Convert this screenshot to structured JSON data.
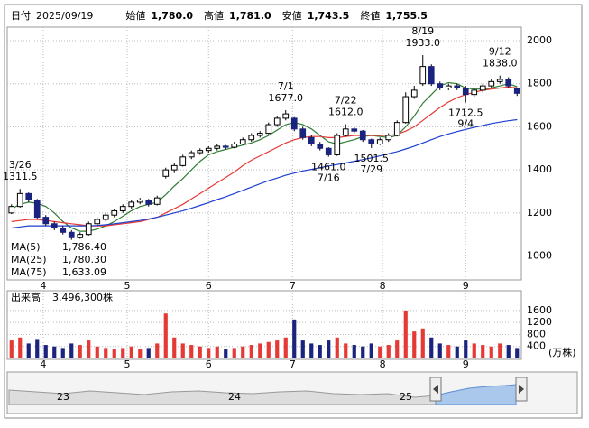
{
  "header": {
    "date_label": "日付",
    "date": "2025/09/19",
    "items": [
      {
        "label": "始値",
        "value": "1,780.0",
        "color": "#000000"
      },
      {
        "label": "高値",
        "value": "1,781.0",
        "color": "#e60000"
      },
      {
        "label": "安値",
        "value": "1,743.5",
        "color": "#008000"
      },
      {
        "label": "終値",
        "value": "1,755.5",
        "color": "#000000"
      }
    ]
  },
  "chart_data": {
    "type": "candlestick",
    "categories": [
      null,
      null,
      null,
      null,
      null,
      null,
      null,
      null,
      null,
      null,
      null,
      null,
      null,
      null,
      null,
      null,
      null,
      null,
      null,
      null,
      null,
      null,
      null,
      null,
      null,
      null,
      null,
      null,
      null,
      null,
      null,
      null,
      null,
      null,
      null,
      null,
      null,
      null,
      null,
      null,
      null,
      null,
      null,
      null,
      null,
      null,
      null,
      null,
      null,
      null,
      null,
      null,
      null,
      null,
      null,
      null,
      null,
      null,
      null,
      null
    ],
    "open": [
      1200,
      1230,
      1290,
      1260,
      1180,
      1150,
      1130,
      1110,
      1085,
      1100,
      1150,
      1170,
      1190,
      1210,
      1230,
      1250,
      1260,
      1240,
      1370,
      1400,
      1420,
      1460,
      1480,
      1490,
      1500,
      1510,
      1505,
      1520,
      1540,
      1560,
      1570,
      1610,
      1640,
      1640,
      1590,
      1550,
      1520,
      1500,
      1470,
      1560,
      1590,
      1580,
      1540,
      1520,
      1540,
      1560,
      1620,
      1740,
      1800,
      1880,
      1800,
      1780,
      1790,
      1780,
      1750,
      1770,
      1790,
      1810,
      1820,
      1780
    ],
    "high": [
      1240,
      1311.5,
      1295,
      1265,
      1190,
      1160,
      1140,
      1120,
      1110,
      1160,
      1180,
      1200,
      1220,
      1240,
      1260,
      1270,
      1265,
      1280,
      1410,
      1430,
      1470,
      1490,
      1500,
      1510,
      1520,
      1515,
      1530,
      1550,
      1570,
      1580,
      1620,
      1650,
      1677,
      1645,
      1600,
      1560,
      1530,
      1505,
      1570,
      1612,
      1600,
      1585,
      1545,
      1550,
      1570,
      1630,
      1760,
      1790,
      1933,
      1890,
      1810,
      1800,
      1800,
      1790,
      1780,
      1800,
      1820,
      1838,
      1830,
      1781
    ],
    "low": [
      1195,
      1225,
      1250,
      1170,
      1140,
      1120,
      1100,
      1075,
      1080,
      1095,
      1140,
      1160,
      1180,
      1200,
      1220,
      1240,
      1230,
      1235,
      1360,
      1385,
      1415,
      1450,
      1470,
      1480,
      1490,
      1495,
      1500,
      1515,
      1530,
      1550,
      1565,
      1600,
      1630,
      1580,
      1540,
      1510,
      1490,
      1461,
      1465,
      1555,
      1570,
      1530,
      1501.5,
      1515,
      1530,
      1555,
      1615,
      1730,
      1790,
      1790,
      1770,
      1770,
      1770,
      1712.5,
      1740,
      1760,
      1780,
      1800,
      1780,
      1743.5
    ],
    "close": [
      1230,
      1290,
      1260,
      1180,
      1150,
      1130,
      1110,
      1085,
      1100,
      1150,
      1170,
      1190,
      1210,
      1230,
      1250,
      1260,
      1240,
      1270,
      1400,
      1420,
      1460,
      1480,
      1490,
      1500,
      1510,
      1505,
      1520,
      1540,
      1560,
      1570,
      1610,
      1640,
      1660,
      1590,
      1550,
      1520,
      1500,
      1470,
      1560,
      1590,
      1580,
      1540,
      1520,
      1540,
      1560,
      1620,
      1740,
      1770,
      1880,
      1800,
      1780,
      1790,
      1780,
      1750,
      1770,
      1790,
      1810,
      1820,
      1790,
      1755.5
    ],
    "up_color": "#ffffff",
    "down_color": "#1a237e",
    "annotations": [
      {
        "date": "3/26",
        "value": 1311.5,
        "label": "1311.5"
      },
      {
        "date": "7/1",
        "value": 1677,
        "label": "1677.0"
      },
      {
        "date": "7/22",
        "value": 1612,
        "label": "1612.0"
      },
      {
        "date": "8/19",
        "value": 1933,
        "label": "1933.0"
      },
      {
        "date": "9/12",
        "value": 1838,
        "label": "1838.0"
      },
      {
        "date": "7/16",
        "value": 1461,
        "label": "1461.0"
      },
      {
        "date": "7/29",
        "value": 1501.5,
        "label": "1501.5"
      },
      {
        "date": "9/4",
        "value": 1712.5,
        "label": "1712.5"
      }
    ],
    "series": [
      {
        "name": "MA(5)",
        "legend_value": "1,786.40",
        "color": "#2e7d32",
        "values": [
          1220,
          1240,
          1250,
          1245,
          1230,
          1200,
          1160,
          1130,
          1115,
          1115,
          1125,
          1140,
          1160,
          1185,
          1210,
          1230,
          1240,
          1250,
          1285,
          1325,
          1360,
          1400,
          1440,
          1470,
          1485,
          1495,
          1505,
          1515,
          1525,
          1540,
          1560,
          1585,
          1610,
          1620,
          1610,
          1590,
          1560,
          1530,
          1520,
          1530,
          1540,
          1555,
          1560,
          1555,
          1550,
          1560,
          1600,
          1650,
          1710,
          1750,
          1790,
          1805,
          1800,
          1780,
          1775,
          1775,
          1780,
          1790,
          1800,
          1786.4
        ]
      },
      {
        "name": "MA(25)",
        "legend_value": "1,780.30",
        "color": "#e53935",
        "values": [
          1160,
          1165,
          1170,
          1170,
          1165,
          1160,
          1155,
          1150,
          1145,
          1140,
          1140,
          1140,
          1145,
          1150,
          1155,
          1160,
          1170,
          1180,
          1200,
          1220,
          1240,
          1265,
          1290,
          1315,
          1340,
          1365,
          1390,
          1420,
          1445,
          1465,
          1485,
          1505,
          1525,
          1540,
          1550,
          1555,
          1555,
          1550,
          1550,
          1555,
          1560,
          1560,
          1560,
          1560,
          1560,
          1565,
          1580,
          1600,
          1630,
          1660,
          1690,
          1715,
          1735,
          1750,
          1760,
          1770,
          1775,
          1780,
          1785,
          1780.3
        ]
      },
      {
        "name": "MA(75)",
        "legend_value": "1,633.09",
        "color": "#1e3fd0",
        "values": [
          1130,
          1135,
          1140,
          1140,
          1140,
          1140,
          1140,
          1140,
          1140,
          1140,
          1142,
          1145,
          1150,
          1155,
          1160,
          1165,
          1172,
          1180,
          1190,
          1200,
          1210,
          1222,
          1235,
          1248,
          1262,
          1275,
          1290,
          1305,
          1320,
          1335,
          1350,
          1362,
          1375,
          1385,
          1395,
          1402,
          1410,
          1418,
          1425,
          1432,
          1440,
          1448,
          1456,
          1465,
          1475,
          1485,
          1497,
          1510,
          1525,
          1540,
          1555,
          1567,
          1578,
          1588,
          1597,
          1606,
          1615,
          1622,
          1628,
          1633.09
        ]
      }
    ],
    "xlim": [
      -0.5,
      59.5
    ],
    "xticks": [
      {
        "value": 3.7,
        "label": "4"
      },
      {
        "value": 13.5,
        "label": "5"
      },
      {
        "value": 23,
        "label": "6"
      },
      {
        "value": 32.8,
        "label": "7"
      },
      {
        "value": 43.3,
        "label": "8"
      },
      {
        "value": 53,
        "label": "9"
      }
    ],
    "ylim": [
      889,
      2063
    ],
    "yticks": [
      1000,
      1200,
      1400,
      1600,
      1800,
      2000
    ],
    "grid": true,
    "volume": {
      "name": "出来高",
      "legend_value": "3,496,300株",
      "unit": "(万株)",
      "up_color": "#e53935",
      "down_color": "#1a237e",
      "values": [
        600,
        700,
        500,
        650,
        450,
        400,
        350,
        500,
        450,
        600,
        400,
        350,
        300,
        350,
        400,
        300,
        350,
        500,
        1500,
        700,
        500,
        450,
        400,
        350,
        400,
        300,
        350,
        400,
        450,
        500,
        550,
        600,
        700,
        1300,
        600,
        500,
        450,
        600,
        700,
        500,
        450,
        400,
        500,
        400,
        450,
        600,
        1600,
        900,
        1000,
        700,
        500,
        450,
        400,
        600,
        500,
        450,
        400,
        500,
        450,
        349.63
      ],
      "ylim": [
        0,
        2200
      ],
      "yticks": [
        400,
        800,
        1200,
        1600
      ]
    },
    "navigator": {
      "labels": [
        "23",
        "24",
        "25"
      ]
    }
  }
}
